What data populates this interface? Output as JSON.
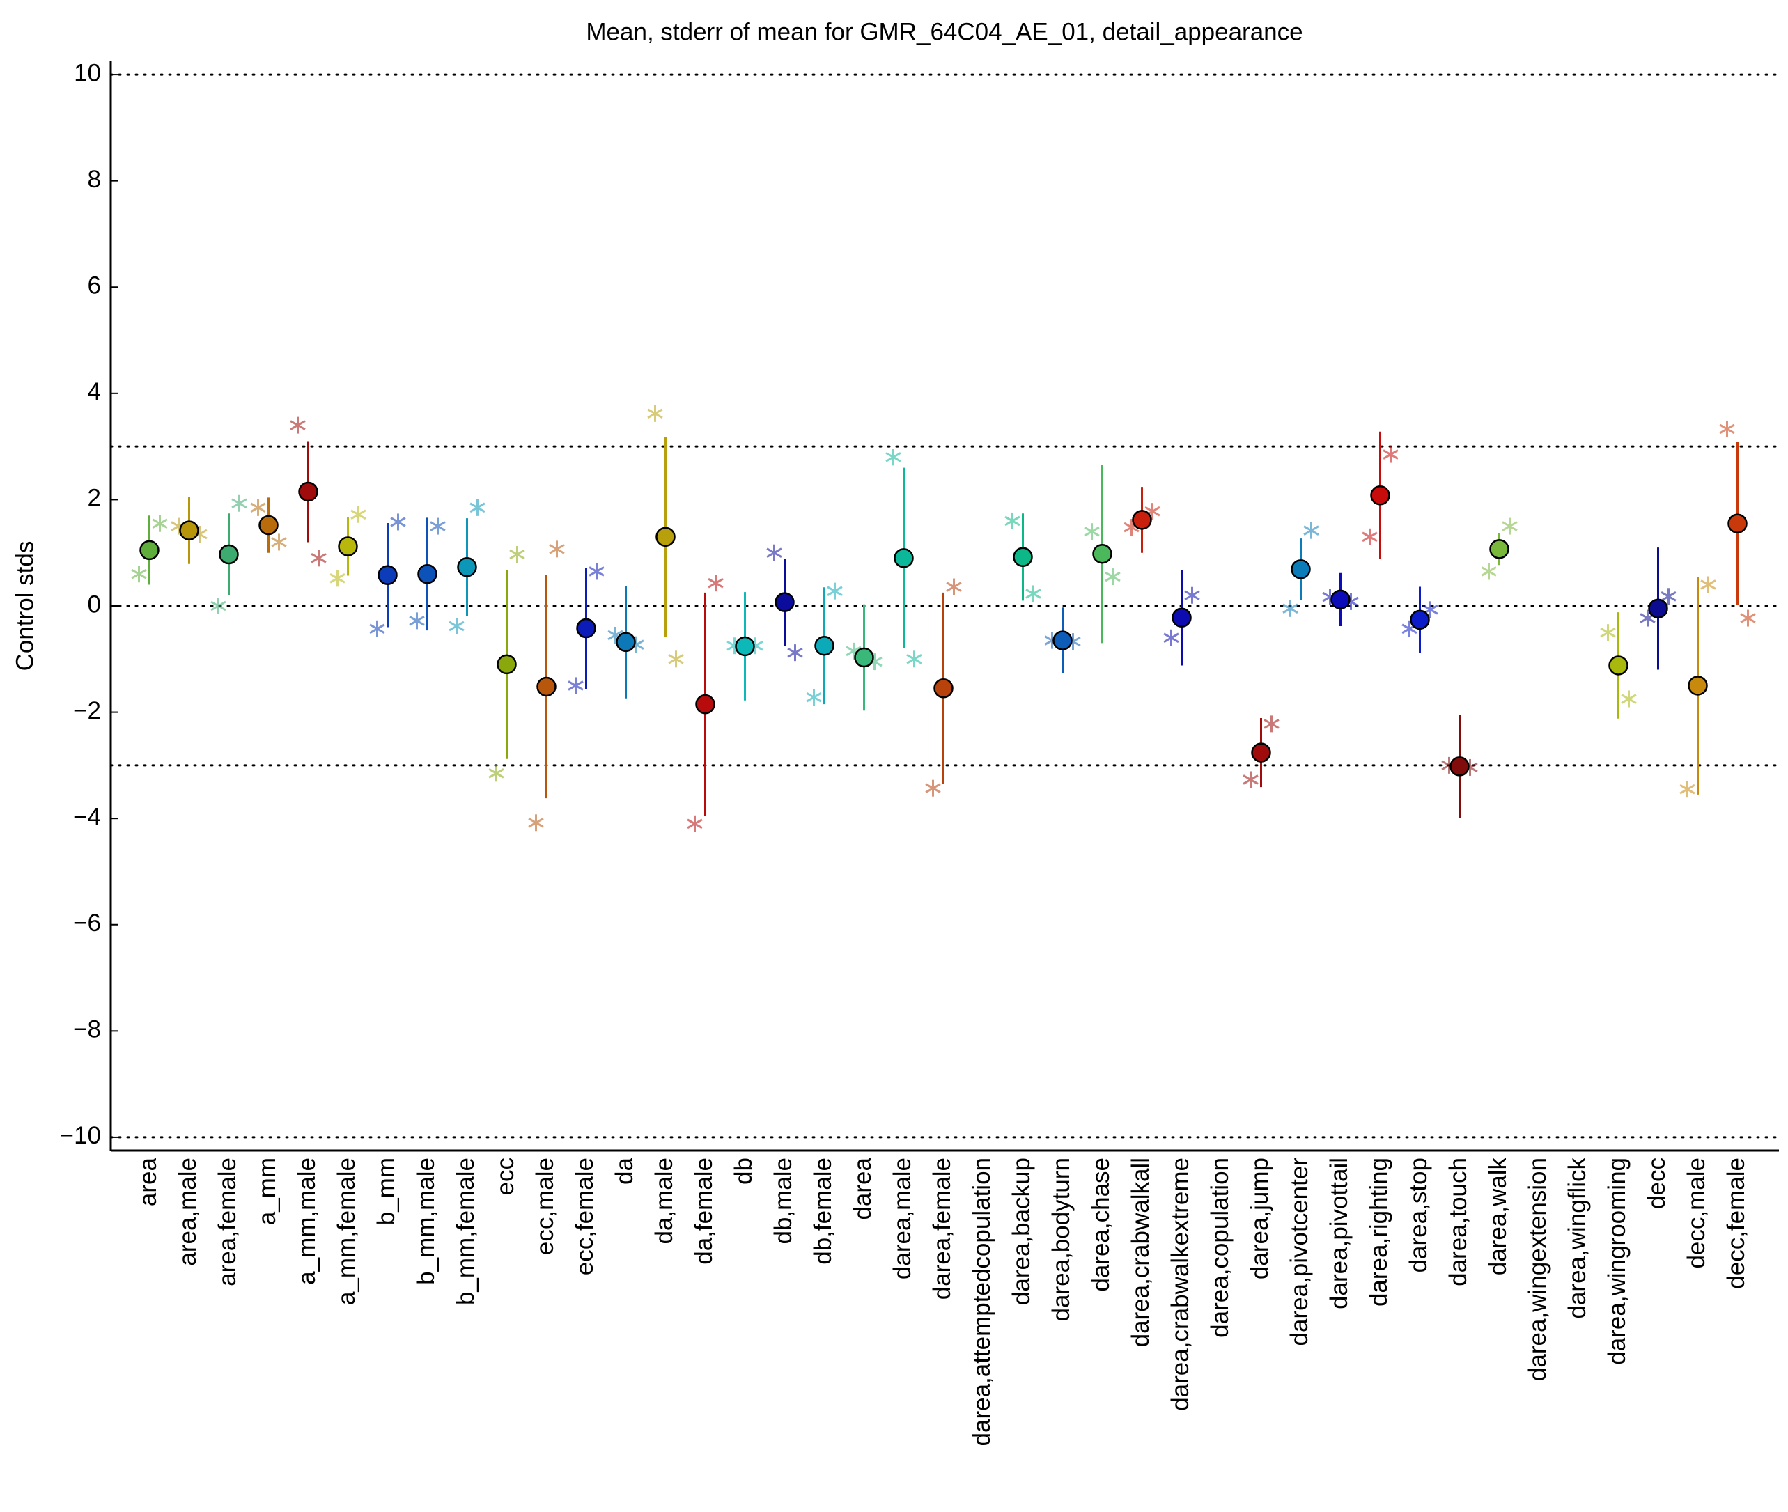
{
  "chart_data": {
    "type": "errorbar",
    "title": "Mean, stderr of mean for GMR_64C04_AE_01, detail_appearance",
    "ylabel": "Control stds",
    "ylim": [
      -10.25,
      10.25
    ],
    "yticks": [
      {
        "value": -10,
        "label": "−10"
      },
      {
        "value": -8,
        "label": "−8"
      },
      {
        "value": -6,
        "label": "−6"
      },
      {
        "value": -4,
        "label": "−4"
      },
      {
        "value": -2,
        "label": "−2"
      },
      0,
      2,
      4,
      6,
      8,
      10
    ],
    "reference_lines": [
      10,
      3,
      0,
      -3,
      -10
    ],
    "categories": [
      "area",
      "area,male",
      "area,female",
      "a_mm",
      "a_mm,male",
      "a_mm,female",
      "b_mm",
      "b_mm,male",
      "b_mm,female",
      "ecc",
      "ecc,male",
      "ecc,female",
      "da",
      "da,male",
      "da,female",
      "db",
      "db,male",
      "db,female",
      "darea",
      "darea,male",
      "darea,female",
      "darea,attemptedcopulation",
      "darea,backup",
      "darea,bodyturn",
      "darea,chase",
      "darea,crabwalkall",
      "darea,crabwalkextreme",
      "darea,copulation",
      "darea,jump",
      "darea,pivotcenter",
      "darea,pivottail",
      "darea,righting",
      "darea,stop",
      "darea,touch",
      "darea,walk",
      "darea,wingextension",
      "darea,wingflick",
      "darea,wingrooming",
      "decc",
      "decc,male",
      "decc,female"
    ],
    "colors": [
      "#5fae3c",
      "#b8960c",
      "#3daa70",
      "#b86c0c",
      "#a00c0c",
      "#b8b80c",
      "#0c3cb8",
      "#0c52b8",
      "#0c96b8",
      "#8aa80c",
      "#b8560c",
      "#0c1cb8",
      "#0c78b8",
      "#b8a00c",
      "#b80c0c",
      "#0cb8b8",
      "#0c0c9c",
      "#0caab8",
      "#3ab87a",
      "#0cb89a",
      "#b8420c",
      "#999999",
      "#0cb888",
      "#0c5cb8",
      "#4cb85c",
      "#c8200c",
      "#0c0cb0",
      "#999999",
      "#a00c0c",
      "#0c7cb8",
      "#0c0cb8",
      "#c80c0c",
      "#0c1cc8",
      "#800c0c",
      "#7ab83c",
      "#999999",
      "#999999",
      "#a8b80c",
      "#0c0c90",
      "#c88a0c",
      "#c83a0c"
    ],
    "values": [
      1.05,
      1.42,
      0.97,
      1.52,
      2.15,
      1.12,
      0.58,
      0.6,
      0.73,
      -1.1,
      -1.52,
      -0.42,
      -0.68,
      1.3,
      -1.85,
      -0.76,
      0.07,
      -0.75,
      -0.97,
      0.9,
      -1.55,
      null,
      0.92,
      -0.65,
      0.98,
      1.62,
      -0.22,
      null,
      -2.76,
      0.69,
      0.12,
      2.08,
      -0.26,
      -3.02,
      1.07,
      null,
      null,
      -1.12,
      -0.05,
      -1.5,
      1.55
    ],
    "errors": [
      0.65,
      0.63,
      0.77,
      0.52,
      0.95,
      0.55,
      0.98,
      1.06,
      0.92,
      1.78,
      2.1,
      1.14,
      1.06,
      1.88,
      2.1,
      1.02,
      0.82,
      1.1,
      1.0,
      1.7,
      1.8,
      null,
      0.82,
      0.62,
      1.68,
      0.62,
      0.9,
      null,
      0.65,
      0.58,
      0.5,
      1.2,
      0.62,
      0.97,
      0.3,
      null,
      null,
      1.0,
      1.15,
      2.05,
      1.53
    ],
    "stars_left": [
      0.6,
      1.5,
      0.0,
      1.85,
      3.4,
      0.52,
      -0.43,
      -0.28,
      -0.38,
      -3.15,
      -4.08,
      -1.5,
      -0.55,
      3.62,
      -4.1,
      -0.75,
      1.0,
      -1.72,
      -0.85,
      2.8,
      -3.43,
      null,
      1.6,
      -0.65,
      1.4,
      1.48,
      -0.6,
      null,
      -3.27,
      -0.05,
      0.17,
      1.3,
      -0.43,
      -3.0,
      0.65,
      null,
      null,
      -0.5,
      -0.23,
      -3.45,
      3.33
    ],
    "stars_right": [
      1.55,
      1.35,
      1.93,
      1.2,
      0.9,
      1.72,
      1.58,
      1.5,
      1.85,
      0.97,
      1.07,
      0.65,
      -0.73,
      -1.0,
      0.43,
      -0.75,
      -0.88,
      0.28,
      -1.05,
      -1.0,
      0.36,
      null,
      0.23,
      -0.67,
      0.55,
      1.78,
      0.2,
      null,
      -2.22,
      1.42,
      0.08,
      2.85,
      -0.07,
      -3.04,
      1.5,
      null,
      null,
      -1.75,
      0.18,
      0.4,
      -0.23
    ]
  }
}
